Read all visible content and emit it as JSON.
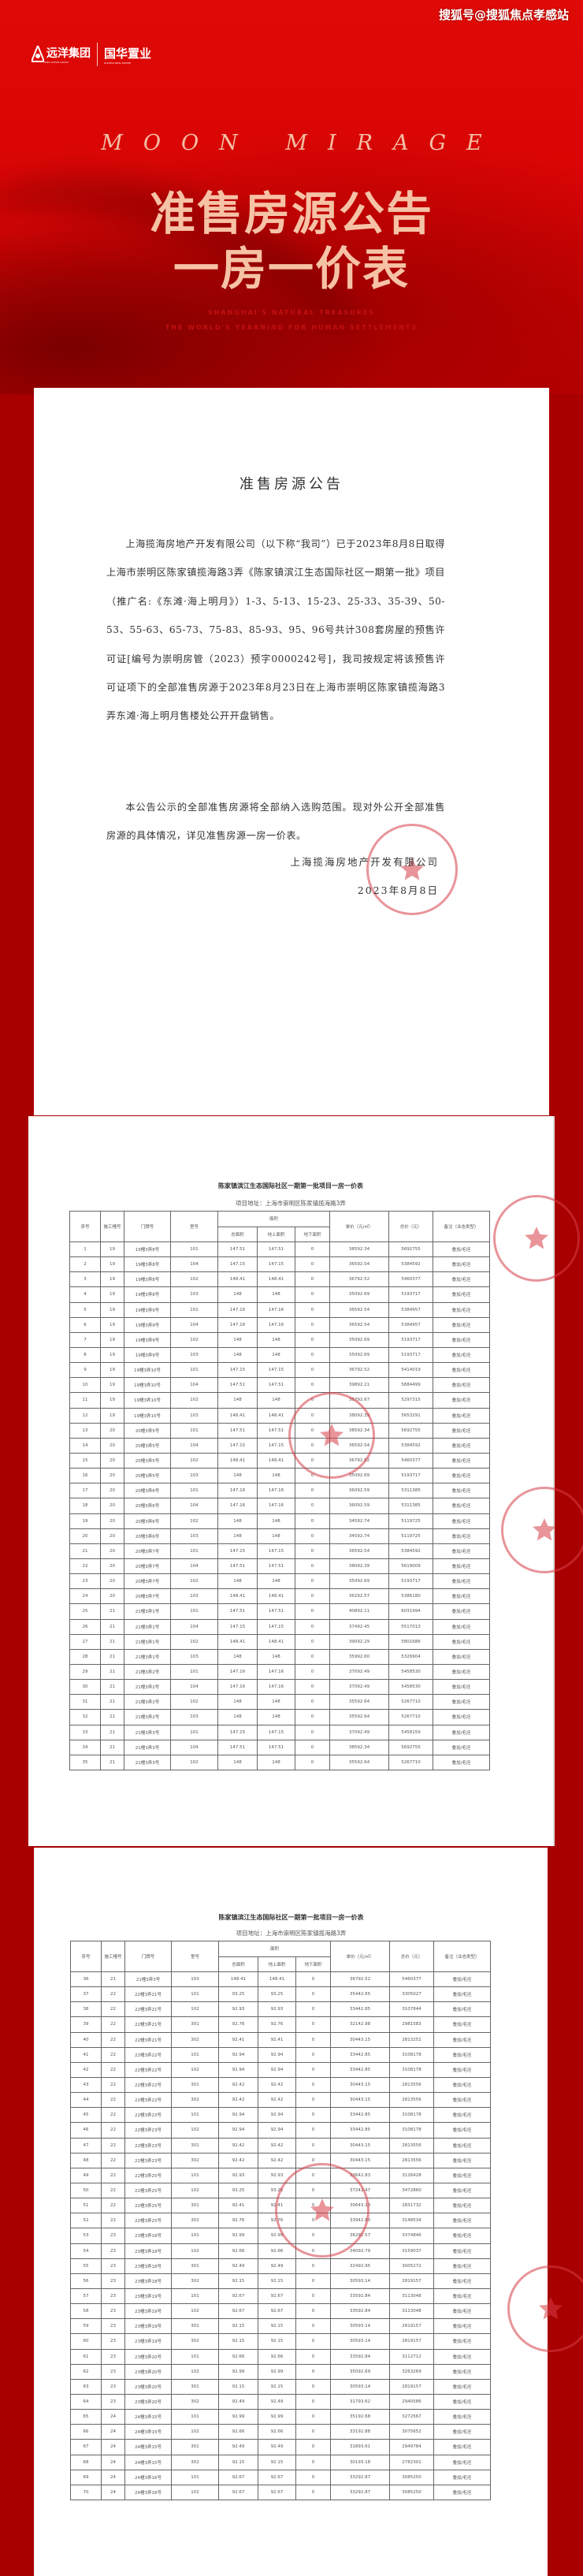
{
  "watermark": "搜狐号@搜狐焦点孝感站",
  "logo": {
    "brand1": "远洋集团",
    "brand1_sub": "SINO-OCEAN GROUP",
    "brand2": "国华置业",
    "brand2_sub": "GUOHUA REAL ESTATE"
  },
  "hero": {
    "tagline": "MOON MIRAGE",
    "title_line1": "准售房源公告",
    "title_line2": "一房一价表",
    "en_line1": "SHANGHAI'S NATURAL TREASURES",
    "en_line2": "THE WORLD'S YEARNING FOR HUMAN SETTLEMENTS"
  },
  "announcement": {
    "title": "准售房源公告",
    "paragraph1": "上海揽海房地产开发有限公司（以下称“我司”）已于2023年8月8日取得上海市崇明区陈家镇揽海路3弄《陈家镇滨江生态国际社区一期第一批》项目（推广名:《东滩·海上明月》）1-3、5-13、15-23、25-33、35-39、50-53、55-63、65-73、75-83、85-93、95、96号共计308套房屋的预售许可证[编号为崇明房管（2023）预字0000242号]，我司按规定将该预售许可证项下的全部准售房源于2023年8月23日在上海市崇明区陈家镇揽海路3弄东滩·海上明月售楼处公开开盘销售。",
    "paragraph2": "本公告公示的全部准售房源将全部纳入选购范围。现对外公开全部准售房源的具体情况，详见准售房源一房一价表。",
    "signature": "上海揽海房地产开发有限公司",
    "date": "2023年8月8日"
  },
  "price_table": {
    "title": "陈家镇滨江生态国际社区一期第一批项目一房一价表",
    "address": "项目地址：上海市崇明区陈家镇揽海路3弄",
    "headers": {
      "seq": "序号",
      "building": "施工幢号",
      "door": "门牌号",
      "room": "室号",
      "area": "面积",
      "total_area": "总面积",
      "above_area": "地上面积",
      "below_area": "地下面积",
      "unit_price": "单价（元/㎡）",
      "total_price": "总价（元）",
      "remark": "备注（业态类型）"
    },
    "pages": [
      {
        "rows": [
          [
            "1",
            "19",
            "19幢3弄8号",
            "101",
            "147.51",
            "147.51",
            "0",
            "38592.34",
            "5692755",
            "叠加/毛坯"
          ],
          [
            "2",
            "19",
            "19幢3弄8号",
            "104",
            "147.15",
            "147.15",
            "0",
            "36592.54",
            "5384592",
            "叠加/毛坯"
          ],
          [
            "3",
            "19",
            "19幢3弄8号",
            "102",
            "148.41",
            "148.41",
            "0",
            "36792.52",
            "5460377",
            "叠加/毛坯"
          ],
          [
            "4",
            "19",
            "19幢3弄8号",
            "103",
            "148",
            "148",
            "0",
            "35092.69",
            "5193717",
            "叠加/毛坯"
          ],
          [
            "5",
            "19",
            "19幢3弄9号",
            "101",
            "147.16",
            "147.16",
            "0",
            "36592.54",
            "5384957",
            "叠加/毛坯"
          ],
          [
            "6",
            "19",
            "19幢3弄9号",
            "104",
            "147.16",
            "147.16",
            "0",
            "36592.54",
            "5384957",
            "叠加/毛坯"
          ],
          [
            "7",
            "19",
            "19幢3弄9号",
            "102",
            "148",
            "148",
            "0",
            "35092.69",
            "5193717",
            "叠加/毛坯"
          ],
          [
            "8",
            "19",
            "19幢3弄9号",
            "103",
            "148",
            "148",
            "0",
            "35092.69",
            "5193717",
            "叠加/毛坯"
          ],
          [
            "9",
            "19",
            "19幢3弄10号",
            "101",
            "147.15",
            "147.15",
            "0",
            "36792.52",
            "5414019",
            "叠加/毛坯"
          ],
          [
            "10",
            "19",
            "19幢3弄10号",
            "104",
            "147.51",
            "147.51",
            "0",
            "39892.21",
            "5884499",
            "叠加/毛坯"
          ],
          [
            "11",
            "19",
            "19幢3弄10号",
            "102",
            "148",
            "148",
            "0",
            "35792.67",
            "5297315",
            "叠加/毛坯"
          ],
          [
            "12",
            "19",
            "19幢3弄10号",
            "103",
            "148.41",
            "148.41",
            "0",
            "38092.39",
            "5653291",
            "叠加/毛坯"
          ],
          [
            "13",
            "20",
            "20幢3弄5号",
            "101",
            "147.51",
            "147.51",
            "0",
            "38592.34",
            "5692755",
            "叠加/毛坯"
          ],
          [
            "14",
            "20",
            "20幢3弄5号",
            "104",
            "147.15",
            "147.15",
            "0",
            "36592.54",
            "5384592",
            "叠加/毛坯"
          ],
          [
            "15",
            "20",
            "20幢3弄5号",
            "102",
            "148.41",
            "148.41",
            "0",
            "36792.52",
            "5460377",
            "叠加/毛坯"
          ],
          [
            "16",
            "20",
            "20幢3弄5号",
            "103",
            "148",
            "148",
            "0",
            "35092.69",
            "5193717",
            "叠加/毛坯"
          ],
          [
            "17",
            "20",
            "20幢3弄6号",
            "101",
            "147.16",
            "147.16",
            "0",
            "36092.59",
            "5311385",
            "叠加/毛坯"
          ],
          [
            "18",
            "20",
            "20幢3弄6号",
            "104",
            "147.16",
            "147.16",
            "0",
            "36092.59",
            "5311385",
            "叠加/毛坯"
          ],
          [
            "19",
            "20",
            "20幢3弄6号",
            "102",
            "148",
            "148",
            "0",
            "34592.74",
            "5119725",
            "叠加/毛坯"
          ],
          [
            "20",
            "20",
            "20幢3弄6号",
            "103",
            "148",
            "148",
            "0",
            "34592.74",
            "5119725",
            "叠加/毛坯"
          ],
          [
            "21",
            "20",
            "20幢3弄7号",
            "101",
            "147.15",
            "147.15",
            "0",
            "36592.54",
            "5384592",
            "叠加/毛坯"
          ],
          [
            "22",
            "20",
            "20幢3弄7号",
            "104",
            "147.51",
            "147.51",
            "0",
            "38092.39",
            "5619009",
            "叠加/毛坯"
          ],
          [
            "23",
            "20",
            "20幢3弄7号",
            "102",
            "148",
            "148",
            "0",
            "35092.69",
            "5193717",
            "叠加/毛坯"
          ],
          [
            "24",
            "20",
            "20幢3弄7号",
            "103",
            "148.41",
            "148.41",
            "0",
            "36292.57",
            "5386180",
            "叠加/毛坯"
          ],
          [
            "25",
            "21",
            "21幢3弄1号",
            "101",
            "147.51",
            "147.51",
            "0",
            "40892.11",
            "6031994",
            "叠加/毛坯"
          ],
          [
            "26",
            "21",
            "21幢3弄1号",
            "104",
            "147.15",
            "147.15",
            "0",
            "37492.45",
            "5517013",
            "叠加/毛坯"
          ],
          [
            "27",
            "21",
            "21幢3弄1号",
            "102",
            "148.41",
            "148.41",
            "0",
            "39092.29",
            "5801686",
            "叠加/毛坯"
          ],
          [
            "28",
            "21",
            "21幢3弄1号",
            "103",
            "148",
            "148",
            "0",
            "35992.60",
            "5326904",
            "叠加/毛坯"
          ],
          [
            "29",
            "21",
            "21幢3弄2号",
            "101",
            "147.16",
            "147.16",
            "0",
            "37092.49",
            "5458530",
            "叠加/毛坯"
          ],
          [
            "30",
            "21",
            "21幢3弄2号",
            "104",
            "147.16",
            "147.16",
            "0",
            "37092.49",
            "5458530",
            "叠加/毛坯"
          ],
          [
            "31",
            "21",
            "21幢3弄2号",
            "102",
            "148",
            "148",
            "0",
            "35592.64",
            "5267710",
            "叠加/毛坯"
          ],
          [
            "32",
            "21",
            "21幢3弄2号",
            "103",
            "148",
            "148",
            "0",
            "35592.64",
            "5267710",
            "叠加/毛坯"
          ],
          [
            "33",
            "21",
            "21幢3弄3号",
            "101",
            "147.15",
            "147.15",
            "0",
            "37092.49",
            "5458159",
            "叠加/毛坯"
          ],
          [
            "34",
            "21",
            "21幢3弄3号",
            "104",
            "147.51",
            "147.51",
            "0",
            "38592.34",
            "5692755",
            "叠加/毛坯"
          ],
          [
            "35",
            "21",
            "21幢3弄3号",
            "102",
            "148",
            "148",
            "0",
            "35592.64",
            "5267710",
            "叠加/毛坯"
          ]
        ]
      },
      {
        "rows": [
          [
            "36",
            "21",
            "21幢3弄3号",
            "103",
            "148.41",
            "148.41",
            "0",
            "36792.52",
            "5460377",
            "叠加/毛坯"
          ],
          [
            "37",
            "22",
            "22幢3弄21号",
            "101",
            "93.25",
            "93.25",
            "0",
            "35442.65",
            "3305027",
            "叠加/毛坯"
          ],
          [
            "38",
            "22",
            "22幢3弄21号",
            "102",
            "92.93",
            "92.93",
            "0",
            "33442.85",
            "3107844",
            "叠加/毛坯"
          ],
          [
            "39",
            "22",
            "22幢3弄21号",
            "301",
            "92.76",
            "92.76",
            "0",
            "32142.98",
            "2981583",
            "叠加/毛坯"
          ],
          [
            "40",
            "22",
            "22幢3弄21号",
            "302",
            "92.41",
            "92.41",
            "0",
            "30443.15",
            "2813251",
            "叠加/毛坯"
          ],
          [
            "41",
            "22",
            "22幢3弄22号",
            "101",
            "92.94",
            "92.94",
            "0",
            "33442.85",
            "3108178",
            "叠加/毛坯"
          ],
          [
            "42",
            "22",
            "22幢3弄22号",
            "102",
            "92.94",
            "92.94",
            "0",
            "33442.85",
            "3108178",
            "叠加/毛坯"
          ],
          [
            "43",
            "22",
            "22幢3弄22号",
            "301",
            "92.42",
            "92.42",
            "0",
            "30443.15",
            "2813556",
            "叠加/毛坯"
          ],
          [
            "44",
            "22",
            "22幢3弄22号",
            "302",
            "92.42",
            "92.42",
            "0",
            "30443.15",
            "2813556",
            "叠加/毛坯"
          ],
          [
            "45",
            "22",
            "22幢3弄23号",
            "101",
            "92.94",
            "92.94",
            "0",
            "33442.85",
            "3108178",
            "叠加/毛坯"
          ],
          [
            "46",
            "22",
            "22幢3弄23号",
            "102",
            "92.94",
            "92.94",
            "0",
            "33442.85",
            "3108178",
            "叠加/毛坯"
          ],
          [
            "47",
            "22",
            "22幢3弄23号",
            "301",
            "92.42",
            "92.42",
            "0",
            "30443.15",
            "2813556",
            "叠加/毛坯"
          ],
          [
            "48",
            "22",
            "22幢3弄23号",
            "302",
            "92.42",
            "92.42",
            "0",
            "30443.15",
            "2813556",
            "叠加/毛坯"
          ],
          [
            "49",
            "22",
            "22幢3弄25号",
            "101",
            "92.93",
            "92.93",
            "0",
            "33642.83",
            "3126428",
            "叠加/毛坯"
          ],
          [
            "50",
            "22",
            "22幢3弄25号",
            "102",
            "93.25",
            "93.25",
            "0",
            "37242.47",
            "3472860",
            "叠加/毛坯"
          ],
          [
            "51",
            "22",
            "22幢3弄25号",
            "301",
            "92.41",
            "92.41",
            "0",
            "30643.13",
            "2831732",
            "叠加/毛坯"
          ],
          [
            "52",
            "22",
            "22幢3弄25号",
            "302",
            "92.76",
            "92.76",
            "0",
            "33942.80",
            "3148534",
            "叠加/毛坯"
          ],
          [
            "53",
            "23",
            "23幢3弄18号",
            "101",
            "92.99",
            "92.99",
            "0",
            "36292.57",
            "3374846",
            "叠加/毛坯"
          ],
          [
            "54",
            "23",
            "23幢3弄18号",
            "102",
            "92.66",
            "92.66",
            "0",
            "34092.79",
            "3159037",
            "叠加/毛坯"
          ],
          [
            "55",
            "23",
            "23幢3弄18号",
            "301",
            "92.49",
            "92.49",
            "0",
            "32492.95",
            "3005272",
            "叠加/毛坯"
          ],
          [
            "56",
            "23",
            "23幢3弄18号",
            "302",
            "92.15",
            "92.15",
            "0",
            "30593.14",
            "2819157",
            "叠加/毛坯"
          ],
          [
            "57",
            "23",
            "23幢3弄19号",
            "101",
            "92.67",
            "92.67",
            "0",
            "33592.84",
            "3113048",
            "叠加/毛坯"
          ],
          [
            "58",
            "23",
            "23幢3弄19号",
            "102",
            "92.67",
            "92.67",
            "0",
            "33592.84",
            "3113048",
            "叠加/毛坯"
          ],
          [
            "59",
            "23",
            "23幢3弄19号",
            "301",
            "92.15",
            "92.15",
            "0",
            "30593.14",
            "2819157",
            "叠加/毛坯"
          ],
          [
            "60",
            "23",
            "23幢3弄19号",
            "302",
            "92.15",
            "92.15",
            "0",
            "30593.14",
            "2819157",
            "叠加/毛坯"
          ],
          [
            "61",
            "23",
            "23幢3弄20号",
            "101",
            "92.66",
            "92.66",
            "0",
            "33592.84",
            "3112712",
            "叠加/毛坯"
          ],
          [
            "62",
            "23",
            "23幢3弄20号",
            "102",
            "92.99",
            "92.99",
            "0",
            "35092.69",
            "3263269",
            "叠加/毛坯"
          ],
          [
            "63",
            "23",
            "23幢3弄20号",
            "301",
            "92.15",
            "92.15",
            "0",
            "30593.14",
            "2819157",
            "叠加/毛坯"
          ],
          [
            "64",
            "23",
            "23幢3弄20号",
            "302",
            "92.49",
            "92.49",
            "0",
            "31793.62",
            "2940586",
            "叠加/毛坯"
          ],
          [
            "65",
            "24",
            "24幢3弄15号",
            "101",
            "92.99",
            "92.99",
            "0",
            "35192.68",
            "3272567",
            "叠加/毛坯"
          ],
          [
            "66",
            "24",
            "24幢3弄15号",
            "102",
            "92.66",
            "92.66",
            "0",
            "33192.88",
            "3075652",
            "叠加/毛坯"
          ],
          [
            "67",
            "24",
            "24幢3弄15号",
            "301",
            "92.49",
            "92.49",
            "0",
            "31893.61",
            "2949784",
            "叠加/毛坯"
          ],
          [
            "68",
            "24",
            "24幢3弄15号",
            "302",
            "92.15",
            "92.15",
            "0",
            "30193.18",
            "2782301",
            "叠加/毛坯"
          ],
          [
            "69",
            "24",
            "24幢3弄16号",
            "101",
            "92.67",
            "92.67",
            "0",
            "33292.87",
            "3085250",
            "叠加/毛坯"
          ],
          [
            "70",
            "24",
            "24幢3弄16号",
            "102",
            "92.67",
            "92.67",
            "0",
            "33292.87",
            "3085250",
            "叠加/毛坯"
          ]
        ]
      }
    ]
  },
  "colors": {
    "brand_red": "#d80404",
    "title_peach": "#f6c2a6",
    "stamp_red": "#d63c46"
  }
}
